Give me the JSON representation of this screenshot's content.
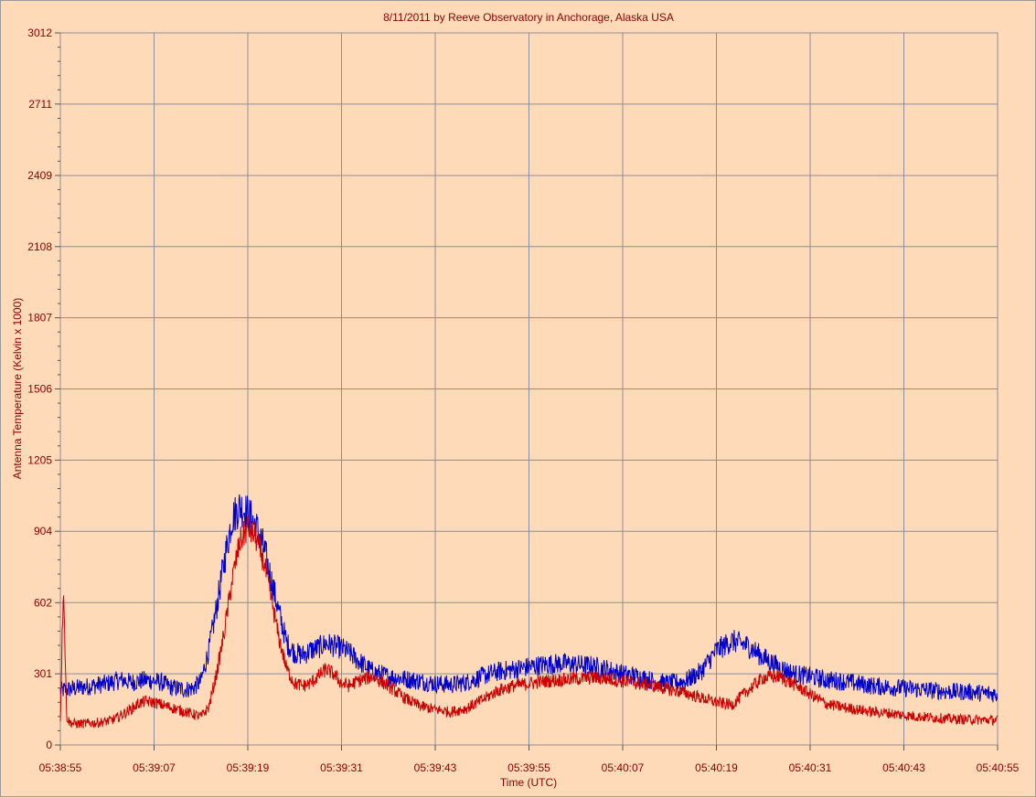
{
  "chart_data": {
    "type": "line",
    "title": "8/11/2011  by  Reeve Observatory  in  Anchorage, Alaska  USA",
    "xlabel": "Time (UTC)",
    "ylabel": "Antenna Temperature (Kelvin x 1000)",
    "xlim_seconds_after_first_tick": [
      0,
      120
    ],
    "x_tick_labels": [
      "05:38:55",
      "05:39:07",
      "05:39:19",
      "05:39:31",
      "05:39:43",
      "05:39:55",
      "05:40:07",
      "05:40:19",
      "05:40:31",
      "05:40:43",
      "05:40:55"
    ],
    "ylim": [
      0,
      3012
    ],
    "y_ticks": [
      0,
      301,
      602,
      904,
      1205,
      1506,
      1807,
      2108,
      2409,
      2711,
      3012
    ],
    "grid": true,
    "colors": {
      "background": "#ffdab9",
      "grid": "#8c8c9c",
      "text": "#8b0000"
    },
    "series": [
      {
        "color": "#0000cc",
        "x": [
          0,
          1,
          2,
          3,
          4,
          5,
          6,
          7,
          8,
          9,
          10,
          11,
          12,
          13,
          14,
          15,
          16,
          17,
          18,
          19,
          20,
          21,
          22,
          23,
          24,
          25,
          26,
          27,
          28,
          29,
          30,
          31,
          32,
          33,
          34,
          35,
          36,
          37,
          38,
          40,
          42,
          44,
          46,
          48,
          50,
          52,
          54,
          56,
          58,
          60,
          62,
          64,
          66,
          68,
          70,
          72,
          74,
          76,
          78,
          80,
          82,
          84,
          86,
          88,
          90,
          92,
          94,
          96,
          98,
          100,
          102,
          104,
          106,
          108,
          110,
          112,
          114,
          116,
          118,
          120
        ],
        "values": [
          230,
          235,
          240,
          245,
          250,
          255,
          260,
          270,
          275,
          265,
          270,
          275,
          270,
          265,
          245,
          240,
          235,
          240,
          270,
          400,
          580,
          780,
          960,
          1010,
          980,
          930,
          840,
          700,
          560,
          430,
          390,
          380,
          400,
          410,
          430,
          420,
          410,
          390,
          360,
          310,
          290,
          280,
          270,
          260,
          255,
          265,
          290,
          310,
          320,
          330,
          340,
          345,
          340,
          335,
          320,
          300,
          290,
          270,
          260,
          270,
          310,
          400,
          440,
          420,
          370,
          330,
          300,
          290,
          275,
          270,
          260,
          250,
          245,
          240,
          235,
          230,
          225,
          225,
          220,
          215
        ]
      },
      {
        "color": "#cc0000",
        "x": [
          0,
          0.4,
          0.8,
          1.2,
          2,
          3,
          4,
          5,
          6,
          7,
          8,
          9,
          10,
          11,
          12,
          13,
          14,
          15,
          16,
          17,
          18,
          19,
          20,
          21,
          22,
          23,
          24,
          25,
          26,
          27,
          28,
          29,
          30,
          31,
          32,
          33,
          34,
          35,
          36,
          37,
          38,
          40,
          42,
          44,
          46,
          48,
          50,
          52,
          54,
          56,
          58,
          60,
          62,
          64,
          66,
          68,
          70,
          72,
          74,
          76,
          78,
          80,
          82,
          84,
          86,
          88,
          90,
          92,
          94,
          96,
          98,
          100,
          102,
          104,
          106,
          108,
          110,
          112,
          114,
          116,
          118,
          120
        ],
        "values": [
          100,
          700,
          120,
          95,
          90,
          90,
          92,
          95,
          100,
          110,
          130,
          150,
          175,
          185,
          180,
          170,
          160,
          150,
          140,
          130,
          120,
          160,
          300,
          480,
          700,
          860,
          920,
          880,
          780,
          620,
          450,
          320,
          260,
          250,
          260,
          290,
          320,
          300,
          260,
          250,
          270,
          290,
          250,
          200,
          165,
          150,
          140,
          155,
          190,
          230,
          250,
          260,
          270,
          275,
          280,
          285,
          280,
          270,
          260,
          250,
          235,
          220,
          200,
          180,
          170,
          230,
          285,
          290,
          255,
          215,
          175,
          160,
          150,
          140,
          135,
          125,
          120,
          115,
          110,
          108,
          106,
          105
        ]
      }
    ]
  }
}
